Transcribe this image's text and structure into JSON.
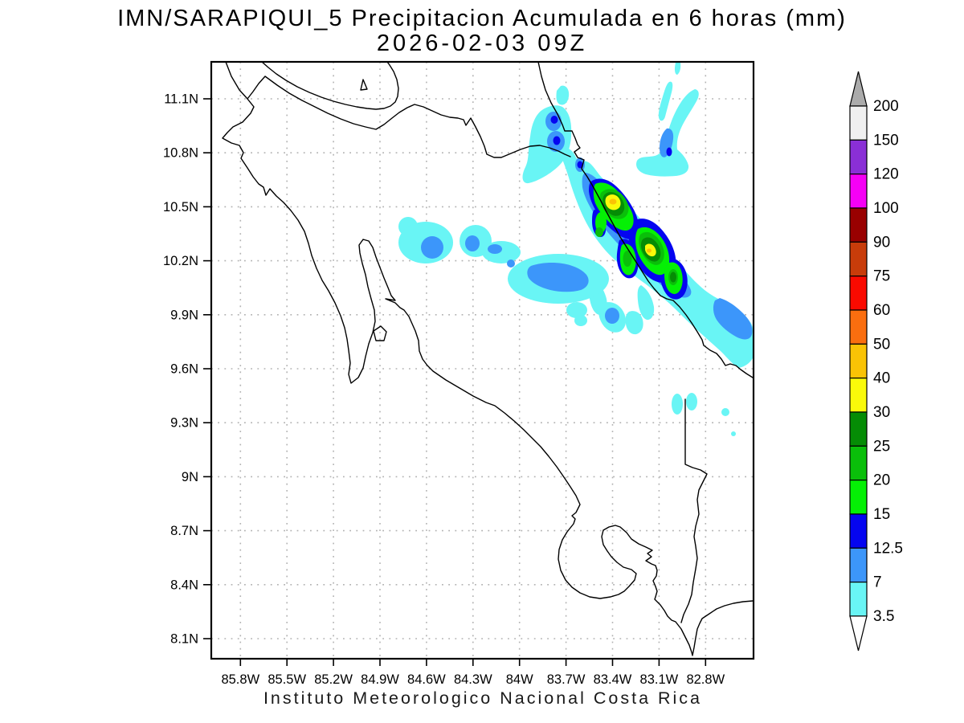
{
  "title": {
    "line1": "IMN/SARAPIQUI_5 Precipitacion Acumulada en 6 horas (mm)",
    "line2": "2026-02-03 09Z"
  },
  "footer": "Instituto  Meteorologico  Nacional  Costa  Rica",
  "axes": {
    "x_ticks": [
      {
        "label": "85.8W",
        "value": 85.8
      },
      {
        "label": "85.5W",
        "value": 85.5
      },
      {
        "label": "85.2W",
        "value": 85.2
      },
      {
        "label": "84.9W",
        "value": 84.9
      },
      {
        "label": "84.6W",
        "value": 84.6
      },
      {
        "label": "84.3W",
        "value": 84.3
      },
      {
        "label": "84W",
        "value": 84.0
      },
      {
        "label": "83.7W",
        "value": 83.7
      },
      {
        "label": "83.4W",
        "value": 83.4
      },
      {
        "label": "83.1W",
        "value": 83.1
      },
      {
        "label": "82.8W",
        "value": 82.8
      }
    ],
    "y_ticks": [
      {
        "label": "11.1N",
        "value": 11.1
      },
      {
        "label": "10.8N",
        "value": 10.8
      },
      {
        "label": "10.5N",
        "value": 10.5
      },
      {
        "label": "10.2N",
        "value": 10.2
      },
      {
        "label": "9.9N",
        "value": 9.9
      },
      {
        "label": "9.6N",
        "value": 9.6
      },
      {
        "label": "9.3N",
        "value": 9.3
      },
      {
        "label": "9N",
        "value": 9.0
      },
      {
        "label": "8.7N",
        "value": 8.7
      },
      {
        "label": "8.4N",
        "value": 8.4
      },
      {
        "label": "8.1N",
        "value": 8.1
      }
    ]
  },
  "colorbar": {
    "labels_top_to_bottom": [
      "200",
      "150",
      "120",
      "100",
      "90",
      "75",
      "60",
      "50",
      "40",
      "30",
      "25",
      "20",
      "15",
      "12.5",
      "7",
      "3.5"
    ],
    "cell_colors_top_to_bottom": [
      "#F0F0F0",
      "#8A2FD6",
      "#F500F5",
      "#990000",
      "#C83C0A",
      "#FA0A00",
      "#FA6E0F",
      "#FAC305",
      "#FAFA0A",
      "#058C05",
      "#0ABF0A",
      "#05F005",
      "#0505F0",
      "#3C96FA",
      "#69F5F5"
    ],
    "over_arrow_color": "#ABABAB",
    "under_arrow_color": "#FFFFFF"
  },
  "chart_data": {
    "type": "heatmap",
    "title": "IMN/SARAPIQUI_5 Precipitacion Acumulada en 6 horas (mm)",
    "subtitle": "2026-02-03 09Z",
    "units": "mm",
    "caption": "Instituto Meteorologico Nacional Costa Rica",
    "xlabel_ticks": [
      "85.8W",
      "85.5W",
      "85.2W",
      "84.9W",
      "84.6W",
      "84.3W",
      "84W",
      "83.7W",
      "83.4W",
      "83.1W",
      "82.8W"
    ],
    "ylabel_ticks": [
      "11.1N",
      "10.8N",
      "10.5N",
      "10.2N",
      "9.9N",
      "9.6N",
      "9.3N",
      "9N",
      "8.7N",
      "8.4N",
      "8.1N"
    ],
    "xlim_deg_west": [
      86.0,
      82.5
    ],
    "ylim_deg_north": [
      8.0,
      11.3
    ],
    "grid": "dotted",
    "legend_position": "right-colorbar",
    "contour_levels_mm": [
      3.5,
      7,
      12.5,
      15,
      20,
      25,
      30,
      40,
      50,
      60,
      75,
      90,
      100,
      120,
      150,
      200
    ],
    "palette_low_to_high": [
      "#69F5F5",
      "#3C96FA",
      "#0505F0",
      "#05F005",
      "#0ABF0A",
      "#058C05",
      "#FAFA0A",
      "#FAC305",
      "#FA6E0F",
      "#FA0A00",
      "#C83C0A",
      "#990000",
      "#F500F5",
      "#8A2FD6",
      "#F0F0F0"
    ],
    "features": [
      {
        "name": "caribbean-slope-band",
        "description": "NW-SE oriented rain band along the Caribbean coast / Sarapiqui slope",
        "extent_lon_w": [
          83.8,
          82.5
        ],
        "extent_lat_n": [
          11.0,
          9.6
        ],
        "max_range_mm": "40-50",
        "cores": [
          {
            "lon_w": 83.4,
            "lat_n": 10.53,
            "peak_mm": "40-50"
          },
          {
            "lon_w": 83.16,
            "lat_n": 10.26,
            "peak_mm": "40-50"
          },
          {
            "lon_w": 83.01,
            "lat_n": 10.11,
            "peak_mm": "25-30"
          }
        ]
      },
      {
        "name": "central-valley-area",
        "description": "Broad light-rain area in the center (around 84.3W-83.8W, 10.1N-10.3N)",
        "max_range_mm": "7-12.5"
      },
      {
        "name": "nicaragua-border-cells",
        "description": "Cells near San Juan delta around 83.6W, 10.7N-10.95N",
        "max_range_mm": "12.5-15"
      },
      {
        "name": "northeast-streaks",
        "description": "Thin NE-SW streaks offshore around 83.0W, 10.7N-11.2N",
        "max_range_mm": "12.5-15"
      },
      {
        "name": "scattered-cells-southeast",
        "description": "Small cells around 83.3W-82.9W, 9.3N-10.0N",
        "max_range_mm": "7-12.5"
      }
    ]
  }
}
